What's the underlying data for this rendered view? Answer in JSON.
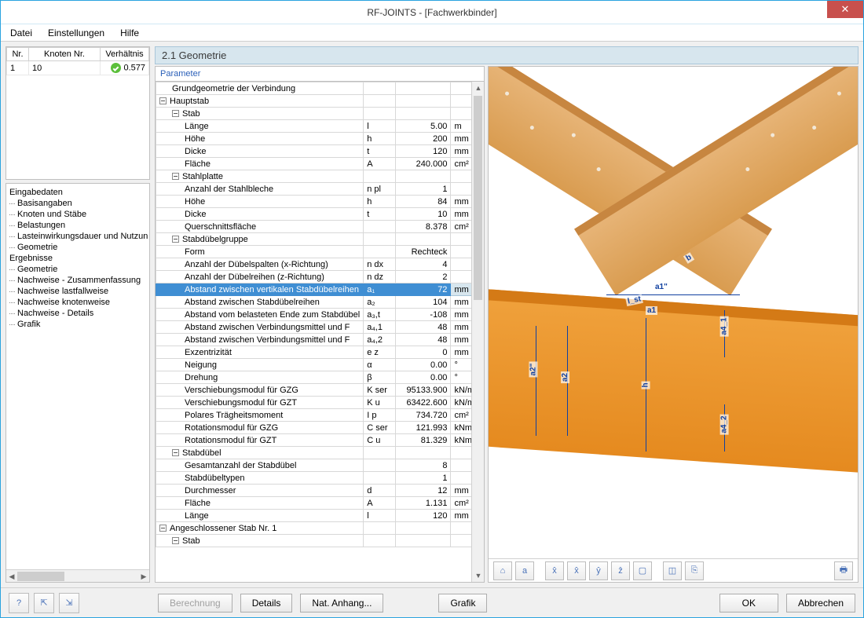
{
  "window": {
    "title": "RF-JOINTS - [Fachwerkbinder]"
  },
  "menu": {
    "items": [
      "Datei",
      "Einstellungen",
      "Hilfe"
    ]
  },
  "topGrid": {
    "headers": [
      "Nr.",
      "Knoten Nr.",
      "Verhältnis"
    ],
    "row": {
      "nr": "1",
      "knoten": "10",
      "ratio": "0.577"
    }
  },
  "tree": {
    "g1": "Eingabedaten",
    "g1items": [
      "Basisangaben",
      "Knoten und Stäbe",
      "Belastungen",
      "Lasteinwirkungsdauer und Nutzungsklasse",
      "Geometrie"
    ],
    "g2": "Ergebnisse",
    "g2items": [
      "Geometrie",
      "Nachweise - Zusammenfassung",
      "Nachweise lastfallweise",
      "Nachweise knotenweise",
      "Nachweise - Details",
      "Grafik"
    ]
  },
  "section": {
    "title": "2.1 Geometrie",
    "paramHeader": "Parameter"
  },
  "rows": [
    {
      "lvl": 1,
      "tog": false,
      "name": "Grundgeometrie der Verbindung",
      "sym": "",
      "val": "",
      "unit": ""
    },
    {
      "lvl": 0,
      "tog": true,
      "name": "Hauptstab",
      "sym": "",
      "val": "",
      "unit": ""
    },
    {
      "lvl": 1,
      "tog": true,
      "name": "Stab",
      "sym": "",
      "val": "",
      "unit": ""
    },
    {
      "lvl": 2,
      "tog": false,
      "name": "Länge",
      "sym": "l",
      "val": "5.00",
      "unit": "m"
    },
    {
      "lvl": 2,
      "tog": false,
      "name": "Höhe",
      "sym": "h",
      "val": "200",
      "unit": "mm"
    },
    {
      "lvl": 2,
      "tog": false,
      "name": "Dicke",
      "sym": "t",
      "val": "120",
      "unit": "mm"
    },
    {
      "lvl": 2,
      "tog": false,
      "name": "Fläche",
      "sym": "A",
      "val": "240.000",
      "unit": "cm²"
    },
    {
      "lvl": 1,
      "tog": true,
      "name": "Stahlplatte",
      "sym": "",
      "val": "",
      "unit": ""
    },
    {
      "lvl": 2,
      "tog": false,
      "name": "Anzahl der Stahlbleche",
      "sym": "n pl",
      "val": "1",
      "unit": ""
    },
    {
      "lvl": 2,
      "tog": false,
      "name": "Höhe",
      "sym": "h",
      "val": "84",
      "unit": "mm"
    },
    {
      "lvl": 2,
      "tog": false,
      "name": "Dicke",
      "sym": "t",
      "val": "10",
      "unit": "mm"
    },
    {
      "lvl": 2,
      "tog": false,
      "name": "Querschnittsfläche",
      "sym": "",
      "val": "8.378",
      "unit": "cm²"
    },
    {
      "lvl": 1,
      "tog": true,
      "name": "Stabdübelgruppe",
      "sym": "",
      "val": "",
      "unit": ""
    },
    {
      "lvl": 2,
      "tog": false,
      "name": "Form",
      "sym": "",
      "val": "Rechteck",
      "unit": ""
    },
    {
      "lvl": 2,
      "tog": false,
      "name": "Anzahl der Dübelspalten (x-Richtung)",
      "sym": "n dx",
      "val": "4",
      "unit": ""
    },
    {
      "lvl": 2,
      "tog": false,
      "name": "Anzahl der Dübelreihen (z-Richtung)",
      "sym": "n dz",
      "val": "2",
      "unit": ""
    },
    {
      "lvl": 2,
      "tog": false,
      "name": "Abstand zwischen vertikalen Stabdübelreihen",
      "sym": "a₁",
      "val": "72",
      "unit": "mm",
      "sel": true
    },
    {
      "lvl": 2,
      "tog": false,
      "name": "Abstand zwischen Stabdübelreihen",
      "sym": "a₂",
      "val": "104",
      "unit": "mm"
    },
    {
      "lvl": 2,
      "tog": false,
      "name": "Abstand vom belasteten Ende zum Stabdübel",
      "sym": "a₃,t",
      "val": "-108",
      "unit": "mm"
    },
    {
      "lvl": 2,
      "tog": false,
      "name": "Abstand zwischen Verbindungsmittel und F",
      "sym": "a₄,1",
      "val": "48",
      "unit": "mm"
    },
    {
      "lvl": 2,
      "tog": false,
      "name": "Abstand zwischen Verbindungsmittel und F",
      "sym": "a₄,2",
      "val": "48",
      "unit": "mm"
    },
    {
      "lvl": 2,
      "tog": false,
      "name": "Exzentrizität",
      "sym": "e z",
      "val": "0",
      "unit": "mm"
    },
    {
      "lvl": 2,
      "tog": false,
      "name": "Neigung",
      "sym": "α",
      "val": "0.00",
      "unit": "°"
    },
    {
      "lvl": 2,
      "tog": false,
      "name": "Drehung",
      "sym": "β",
      "val": "0.00",
      "unit": "°"
    },
    {
      "lvl": 2,
      "tog": false,
      "name": "Verschiebungsmodul für GZG",
      "sym": "K ser",
      "val": "95133.900",
      "unit": "kN/m"
    },
    {
      "lvl": 2,
      "tog": false,
      "name": "Verschiebungsmodul für GZT",
      "sym": "K u",
      "val": "63422.600",
      "unit": "kN/m"
    },
    {
      "lvl": 2,
      "tog": false,
      "name": "Polares Trägheitsmoment",
      "sym": "I p",
      "val": "734.720",
      "unit": "cm²"
    },
    {
      "lvl": 2,
      "tog": false,
      "name": "Rotationsmodul für GZG",
      "sym": "C ser",
      "val": "121.993",
      "unit": "kNm/°"
    },
    {
      "lvl": 2,
      "tog": false,
      "name": "Rotationsmodul für GZT",
      "sym": "C u",
      "val": "81.329",
      "unit": "kNm/°"
    },
    {
      "lvl": 1,
      "tog": true,
      "name": "Stabdübel",
      "sym": "",
      "val": "",
      "unit": ""
    },
    {
      "lvl": 2,
      "tog": false,
      "name": "Gesamtanzahl der Stabdübel",
      "sym": "",
      "val": "8",
      "unit": ""
    },
    {
      "lvl": 2,
      "tog": false,
      "name": "Stabdübeltypen",
      "sym": "",
      "val": "1",
      "unit": ""
    },
    {
      "lvl": 2,
      "tog": false,
      "name": "Durchmesser",
      "sym": "d",
      "val": "12",
      "unit": "mm"
    },
    {
      "lvl": 2,
      "tog": false,
      "name": "Fläche",
      "sym": "A",
      "val": "1.131",
      "unit": "cm²"
    },
    {
      "lvl": 2,
      "tog": false,
      "name": "Länge",
      "sym": "l",
      "val": "120",
      "unit": "mm"
    },
    {
      "lvl": 0,
      "tog": true,
      "name": "Angeschlossener Stab Nr. 1",
      "sym": "",
      "val": "",
      "unit": ""
    },
    {
      "lvl": 1,
      "tog": true,
      "name": "Stab",
      "sym": "",
      "val": "",
      "unit": ""
    }
  ],
  "viewToolbar": {
    "b1": "⌂",
    "b2": "a",
    "b3": "x̂",
    "b4": "x̂",
    "b5": "ŷ",
    "b6": "ẑ",
    "b7": "▢",
    "b8": "◫",
    "b9": "⎘",
    "print": "🖶"
  },
  "dims": {
    "a1p": "a1\"",
    "a1": "a1",
    "l_st": "l_st",
    "b": "b",
    "a2p": "a2\"",
    "a2": "a2",
    "h": "h",
    "a4_1": "a4_1",
    "a4_2": "a4_2"
  },
  "buttons": {
    "berechnung": "Berechnung",
    "details": "Details",
    "natAnhang": "Nat. Anhang...",
    "grafik": "Grafik",
    "ok": "OK",
    "abbrechen": "Abbrechen"
  },
  "colors": {
    "titleBorder": "#2aa3df",
    "close": "#c8504d",
    "section": "#d7e6ee",
    "selRow": "#3f8ed3",
    "beamMain": "#e58a1f",
    "beamDiag": "#d99c50",
    "dim": "#1040a0"
  }
}
